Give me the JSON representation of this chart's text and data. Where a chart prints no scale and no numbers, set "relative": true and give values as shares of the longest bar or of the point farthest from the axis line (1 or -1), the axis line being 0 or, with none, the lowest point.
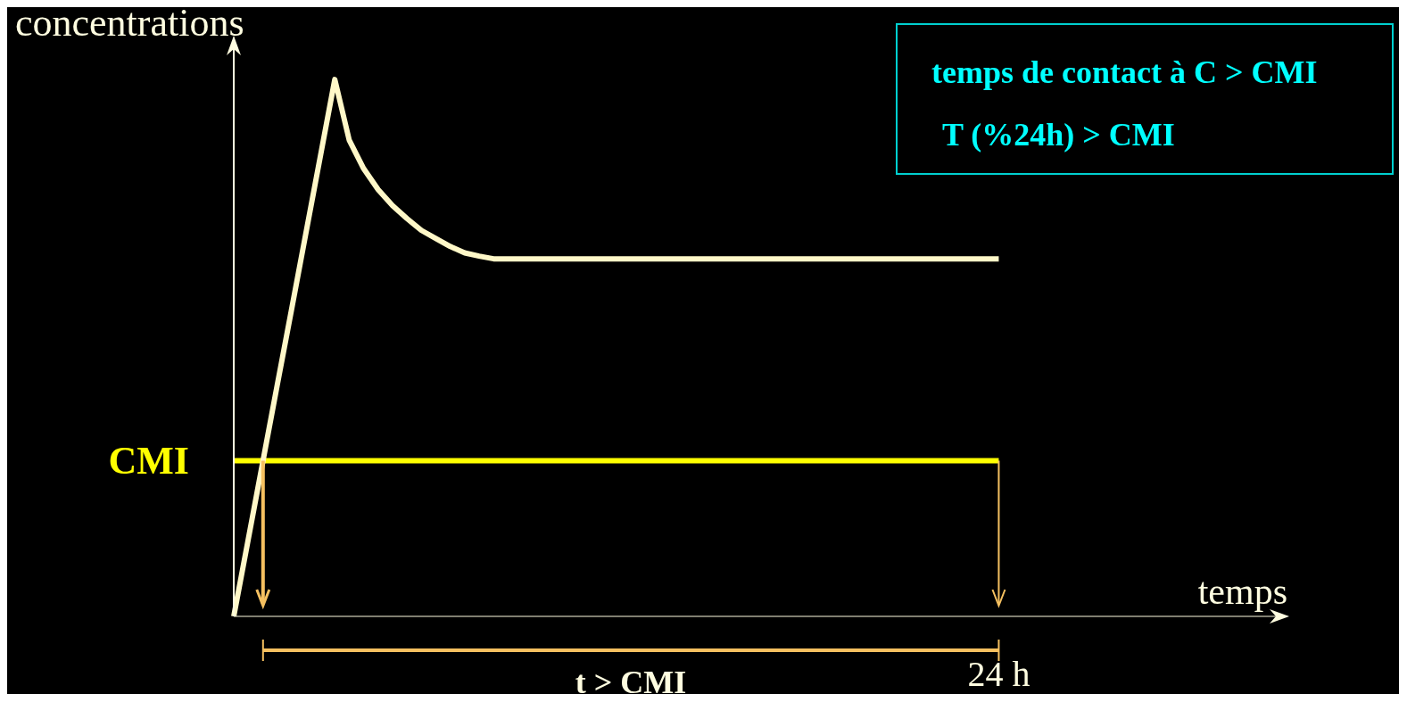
{
  "chart_data": {
    "type": "line",
    "relative": true,
    "xlabel": "temps",
    "ylabel": "concentrations",
    "categories": [
      null,
      null,
      null,
      null,
      null,
      null,
      null,
      null,
      null,
      null,
      null,
      null,
      null,
      null,
      null,
      null,
      null,
      null,
      null,
      null,
      null,
      null,
      null,
      null,
      null,
      null,
      null,
      null,
      null,
      null,
      null,
      null,
      null,
      null,
      null,
      null,
      null,
      null,
      null,
      null,
      null,
      null,
      null,
      null,
      null,
      null,
      null,
      null,
      null,
      null,
      null,
      null,
      null,
      null,
      null,
      null,
      null,
      null,
      null,
      null,
      null,
      null,
      null,
      null,
      null,
      null,
      null,
      null,
      null,
      null,
      null,
      null,
      null,
      null
    ],
    "series": [
      {
        "color": "#fff8c8",
        "values": [
          0,
          0.143,
          0.286,
          0.429,
          0.571,
          0.714,
          0.857,
          1,
          0.887,
          0.834,
          0.795,
          0.765,
          0.741,
          0.719,
          0.704,
          0.689,
          0.677,
          0.671,
          0.666,
          0.666,
          0.666,
          0.666,
          0.666,
          0.666,
          0.666,
          0.666,
          0.666,
          0.666,
          0.666,
          0.666,
          0.666,
          0.666,
          0.666,
          0.666,
          0.666,
          0.666,
          0.666,
          0.666,
          0.666,
          0.666,
          0.666,
          0.666,
          0.666,
          0.666,
          0.666,
          0.666,
          0.666,
          0.666,
          0.666,
          0.666,
          0.666,
          0.666,
          0.666,
          0.666,
          null,
          null,
          null,
          null,
          null,
          null,
          null,
          null,
          null,
          null,
          null,
          null,
          null,
          null,
          null,
          null,
          null,
          null,
          null,
          null
        ]
      }
    ],
    "ref_lines": [
      {
        "axis": "y",
        "value": 0.29,
        "label": "CMI",
        "color": "#ffff00"
      }
    ],
    "annotations": [
      "temps de contact à C > CMI",
      "T (%24h) > CMI",
      "t > CMI",
      "24 h"
    ],
    "grid": false,
    "legend": false,
    "marker": "none"
  }
}
